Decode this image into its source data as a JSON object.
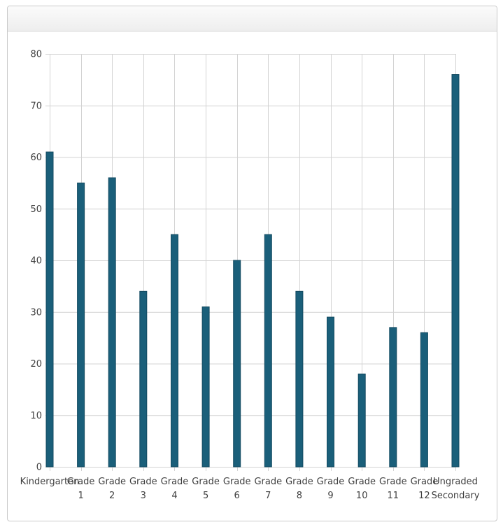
{
  "panel": {
    "title": ""
  },
  "chart_data": {
    "type": "bar",
    "categories": [
      [
        "Kindergarten"
      ],
      [
        "Grade",
        "1"
      ],
      [
        "Grade",
        "2"
      ],
      [
        "Grade",
        "3"
      ],
      [
        "Grade",
        "4"
      ],
      [
        "Grade",
        "5"
      ],
      [
        "Grade",
        "6"
      ],
      [
        "Grade",
        "7"
      ],
      [
        "Grade",
        "8"
      ],
      [
        "Grade",
        "9"
      ],
      [
        "Grade",
        "10"
      ],
      [
        "Grade",
        "11"
      ],
      [
        "Grade",
        "12"
      ],
      [
        "Ungraded",
        "Secondary"
      ]
    ],
    "values": [
      61,
      55,
      56,
      34,
      45,
      31,
      40,
      45,
      34,
      29,
      18,
      27,
      26,
      76
    ],
    "ylim": [
      0,
      80
    ],
    "yticks": [
      0,
      10,
      20,
      30,
      40,
      50,
      60,
      70,
      80
    ],
    "title": "",
    "xlabel": "",
    "ylabel": "",
    "grid": true,
    "legend": "none",
    "colors": {
      "bar": "#1a5f7a",
      "bar_edge": "#134a60",
      "grid": "#d3d3d3"
    }
  }
}
